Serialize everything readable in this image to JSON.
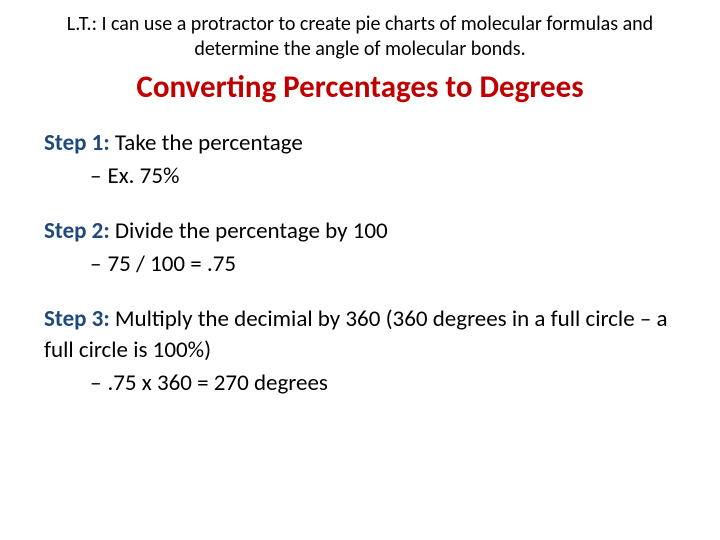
{
  "learning_target": "L.T.: I can use a protractor to create pie charts of molecular formulas and determine the angle of molecular bonds.",
  "title": "Converting Percentages to Degrees",
  "colors": {
    "title": "#c00000",
    "step_label": "#1f497d",
    "body_text": "#000000",
    "background": "#ffffff"
  },
  "typography": {
    "title_fontsize": 31,
    "lt_fontsize": 20,
    "body_fontsize": 23,
    "title_weight": "bold",
    "step_label_weight": "bold",
    "font_family": "Calibri"
  },
  "steps": [
    {
      "label": "Step 1:",
      "instruction": " Take the percentage",
      "example": "Ex. 75%"
    },
    {
      "label": "Step 2:",
      "instruction": " Divide the percentage by 100",
      "example": "75 / 100 = .75"
    },
    {
      "label": "Step 3:",
      "instruction": " Multiply the decimial by 360 (360 degrees in a full circle – a full circle is 100%)",
      "example": ".75 x 360 = 270 degrees"
    }
  ]
}
